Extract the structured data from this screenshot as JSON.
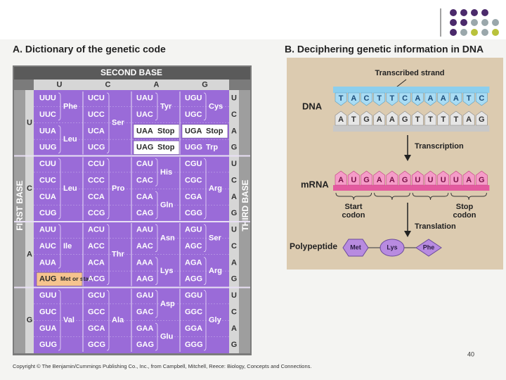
{
  "panel_a": {
    "title": "A. Dictionary of the genetic code",
    "second_base_label": "SECOND BASE",
    "first_base_label": "FIRST BASE",
    "third_base_label": "THIRD BASE",
    "second_bases": [
      "U",
      "C",
      "A",
      "G"
    ],
    "first_bases": [
      "U",
      "C",
      "A",
      "G"
    ],
    "third_bases": [
      "U",
      "C",
      "A",
      "G"
    ],
    "stop_color": "#ffffff",
    "start_color": "#f6c48e",
    "rows": [
      [
        {
          "groups": [
            {
              "aa": "Phe",
              "codons": [
                "UUU",
                "UUC"
              ]
            },
            {
              "aa": "Leu",
              "codons": [
                "UUA",
                "UUG"
              ]
            }
          ]
        },
        {
          "groups": [
            {
              "aa": "Ser",
              "codons": [
                "UCU",
                "UCC",
                "UCA",
                "UCG"
              ]
            }
          ]
        },
        {
          "groups": [
            {
              "aa": "Tyr",
              "codons": [
                "UAU",
                "UAC"
              ]
            },
            {
              "aa": "Stop",
              "codons": [
                "UAA"
              ],
              "highlight": "stop"
            },
            {
              "aa": "Stop",
              "codons": [
                "UAG"
              ],
              "highlight": "stop"
            }
          ]
        },
        {
          "groups": [
            {
              "aa": "Cys",
              "codons": [
                "UGU",
                "UGC"
              ]
            },
            {
              "aa": "Stop",
              "codons": [
                "UGA"
              ],
              "highlight": "stop"
            },
            {
              "aa": "Trp",
              "codons": [
                "UGG"
              ]
            }
          ]
        }
      ],
      [
        {
          "groups": [
            {
              "aa": "Leu",
              "codons": [
                "CUU",
                "CUC",
                "CUA",
                "CUG"
              ]
            }
          ]
        },
        {
          "groups": [
            {
              "aa": "Pro",
              "codons": [
                "CCU",
                "CCC",
                "CCA",
                "CCG"
              ]
            }
          ]
        },
        {
          "groups": [
            {
              "aa": "His",
              "codons": [
                "CAU",
                "CAC"
              ]
            },
            {
              "aa": "Gln",
              "codons": [
                "CAA",
                "CAG"
              ]
            }
          ]
        },
        {
          "groups": [
            {
              "aa": "Arg",
              "codons": [
                "CGU",
                "CGC",
                "CGA",
                "CGG"
              ]
            }
          ]
        }
      ],
      [
        {
          "groups": [
            {
              "aa": "Ile",
              "codons": [
                "AUU",
                "AUC",
                "AUA"
              ]
            },
            {
              "aa": "Met or start",
              "codons": [
                "AUG"
              ],
              "highlight": "start"
            }
          ]
        },
        {
          "groups": [
            {
              "aa": "Thr",
              "codons": [
                "ACU",
                "ACC",
                "ACA",
                "ACG"
              ]
            }
          ]
        },
        {
          "groups": [
            {
              "aa": "Asn",
              "codons": [
                "AAU",
                "AAC"
              ]
            },
            {
              "aa": "Lys",
              "codons": [
                "AAA",
                "AAG"
              ]
            }
          ]
        },
        {
          "groups": [
            {
              "aa": "Ser",
              "codons": [
                "AGU",
                "AGC"
              ]
            },
            {
              "aa": "Arg",
              "codons": [
                "AGA",
                "AGG"
              ]
            }
          ]
        }
      ],
      [
        {
          "groups": [
            {
              "aa": "Val",
              "codons": [
                "GUU",
                "GUC",
                "GUA",
                "GUG"
              ]
            }
          ]
        },
        {
          "groups": [
            {
              "aa": "Ala",
              "codons": [
                "GCU",
                "GCC",
                "GCA",
                "GCG"
              ]
            }
          ]
        },
        {
          "groups": [
            {
              "aa": "Asp",
              "codons": [
                "GAU",
                "GAC"
              ]
            },
            {
              "aa": "Glu",
              "codons": [
                "GAA",
                "GAG"
              ]
            }
          ]
        },
        {
          "groups": [
            {
              "aa": "Gly",
              "codons": [
                "GGU",
                "GGC",
                "GGA",
                "GGG"
              ]
            }
          ]
        }
      ]
    ]
  },
  "panel_b": {
    "title": "B. Deciphering genetic information in DNA",
    "transcribed_strand": "Transcribed strand",
    "dna_label": "DNA",
    "dna_top": [
      "T",
      "A",
      "C",
      "T",
      "T",
      "C",
      "A",
      "A",
      "A",
      "A",
      "T",
      "C"
    ],
    "dna_bottom": [
      "A",
      "T",
      "G",
      "A",
      "A",
      "G",
      "T",
      "T",
      "T",
      "T",
      "A",
      "G"
    ],
    "transcription": "Transcription",
    "mrna_label": "mRNA",
    "mrna": [
      "A",
      "U",
      "G",
      "A",
      "A",
      "G",
      "U",
      "U",
      "U",
      "U",
      "A",
      "G"
    ],
    "start_codon": [
      "Start",
      "codon"
    ],
    "stop_codon": [
      "Stop",
      "codon"
    ],
    "translation": "Translation",
    "polypeptide_label": "Polypeptide",
    "amino_acids": [
      "Met",
      "Lys",
      "Phe"
    ]
  },
  "footer": {
    "copyright": "Copyright © The Benjamin/Cummings Publishing Co., Inc., from Campbell, Mitchell, Reece: Biology, Concepts and Connections.",
    "page_number": "40"
  }
}
